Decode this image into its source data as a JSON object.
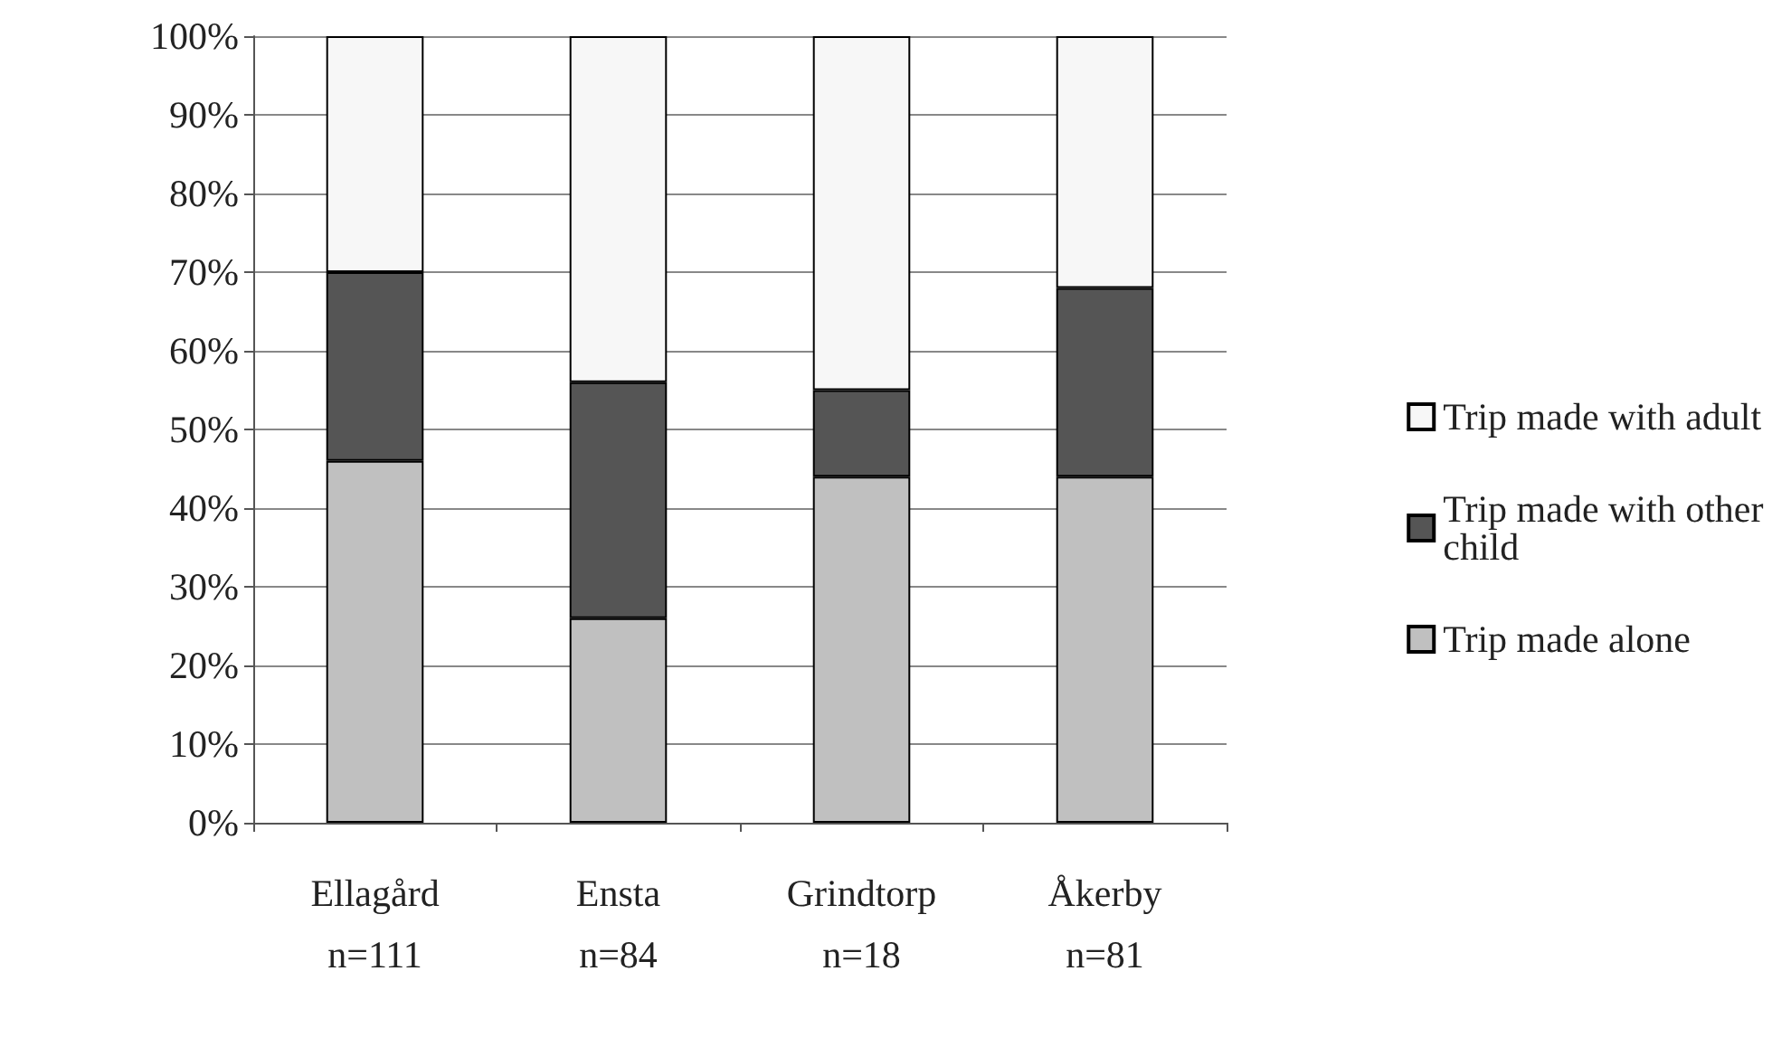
{
  "chart_data": {
    "type": "bar",
    "stacked": true,
    "categories": [
      "Ellagård\nn=111",
      "Ensta\nn=84",
      "Grindtorp\nn=18",
      "Åkerby\nn=81"
    ],
    "series": [
      {
        "name": "Trip made alone",
        "color": "#c0c0c0",
        "values": [
          46,
          26,
          44,
          44
        ]
      },
      {
        "name": "Trip made with other child",
        "color": "#555555",
        "values": [
          24,
          30,
          11,
          24
        ]
      },
      {
        "name": "Trip made with adult",
        "color": "#f7f7f7",
        "values": [
          30,
          44,
          45,
          32
        ]
      }
    ],
    "ylim": [
      0,
      100
    ],
    "yticks": [
      {
        "value": 0,
        "label": "0%"
      },
      {
        "value": 10,
        "label": "10%"
      },
      {
        "value": 20,
        "label": "20%"
      },
      {
        "value": 30,
        "label": "30%"
      },
      {
        "value": 40,
        "label": "40%"
      },
      {
        "value": 50,
        "label": "50%"
      },
      {
        "value": 60,
        "label": "60%"
      },
      {
        "value": 70,
        "label": "70%"
      },
      {
        "value": 80,
        "label": "80%"
      },
      {
        "value": 90,
        "label": "90%"
      },
      {
        "value": 100,
        "label": "100%"
      }
    ],
    "grid": "y",
    "legend": "right"
  }
}
